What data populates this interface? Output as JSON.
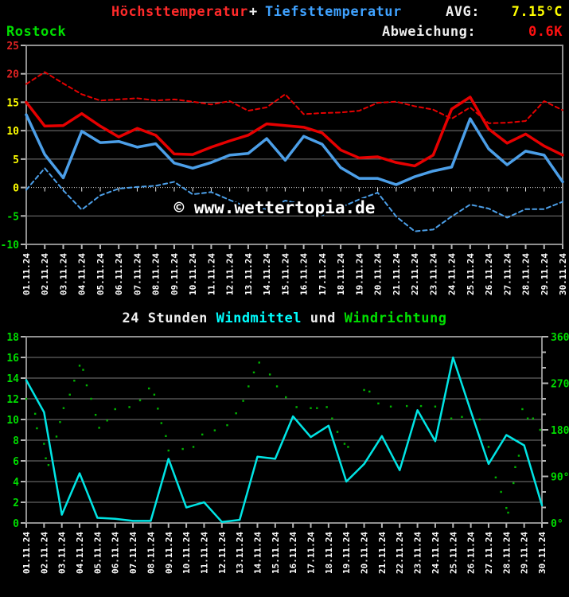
{
  "header": {
    "title_max": "Höchsttemperatur",
    "plus": "+",
    "title_min": "Tiefsttemperatur",
    "avg_label": "AVG:",
    "avg_value": "7.15°C",
    "station": "Rostock",
    "deviation_label": "Abweichung:",
    "deviation_value": "0.6K"
  },
  "watermark": "© www.wettertopia.de",
  "wind_title": {
    "part1": "24 Stunden ",
    "part2": "Windmittel",
    "part3": " und ",
    "part4": "Windrichtung"
  },
  "colors": {
    "background": "#000000",
    "max_line": "#e60000",
    "min_line": "#4c9fe8",
    "avg_value": "#ffff00",
    "deviation_value": "#ff1111",
    "station": "#00e000",
    "wind_line": "#00e5e5",
    "wind_dir_dots": "#00b400",
    "grid": "#7a7a7a",
    "frame": "#909090",
    "tick_labels_white": "#ffffff",
    "tick_labels_green": "#00dd00"
  },
  "chart_data": [
    {
      "type": "line",
      "title": "Höchsttemperatur + Tiefsttemperatur",
      "categories": [
        "01.11.24",
        "02.11.24",
        "03.11.24",
        "04.11.24",
        "05.11.24",
        "06.11.24",
        "07.11.24",
        "08.11.24",
        "09.11.24",
        "10.11.24",
        "11.11.24",
        "12.11.24",
        "13.11.24",
        "14.11.24",
        "15.11.24",
        "16.11.24",
        "17.11.24",
        "18.11.24",
        "19.11.24",
        "20.11.24",
        "21.11.24",
        "22.11.24",
        "23.11.24",
        "24.11.24",
        "25.11.24",
        "26.11.24",
        "27.11.24",
        "28.11.24",
        "29.11.24",
        "30.11.24"
      ],
      "ylabel": "°C",
      "ylim": [
        -10,
        25
      ],
      "ytick_step": 5,
      "yticks": [
        {
          "v": 25,
          "color": "#dd2222"
        },
        {
          "v": 20,
          "color": "#dd2222"
        },
        {
          "v": 15,
          "color": "#ffff00"
        },
        {
          "v": 10,
          "color": "#ffff00"
        },
        {
          "v": 5,
          "color": "#ffff00"
        },
        {
          "v": 0,
          "color": "#ffff00"
        },
        {
          "v": -5,
          "color": "#00dd00"
        },
        {
          "v": -10,
          "color": "#00dd00"
        }
      ],
      "legend_position": "top-outside",
      "grid": true,
      "series": [
        {
          "name": "Höchsttemperatur",
          "style": "solid",
          "color": "#e60000",
          "width": 3.5,
          "values": [
            15.0,
            10.8,
            10.9,
            13.0,
            10.8,
            8.9,
            10.4,
            9.2,
            5.9,
            5.8,
            7.1,
            8.2,
            9.2,
            11.2,
            10.9,
            10.6,
            9.6,
            6.6,
            5.2,
            5.4,
            4.4,
            3.8,
            5.7,
            13.8,
            15.9,
            10.3,
            7.8,
            9.4,
            7.3,
            5.7
          ]
        },
        {
          "name": "Tiefsttemperatur",
          "style": "solid",
          "color": "#4c9fe8",
          "width": 3.5,
          "values": [
            12.8,
            5.8,
            1.7,
            9.9,
            7.9,
            8.1,
            7.1,
            7.7,
            4.3,
            3.4,
            4.4,
            5.7,
            6.0,
            8.6,
            4.8,
            9.0,
            7.6,
            3.5,
            1.6,
            1.6,
            0.5,
            1.9,
            2.9,
            3.6,
            12.1,
            6.8,
            4.0,
            6.4,
            5.7,
            1.0
          ]
        },
        {
          "name": "max_dashed_reference",
          "style": "dashed",
          "color": "#e60000",
          "width": 2,
          "values": [
            18.2,
            20.3,
            18.3,
            16.4,
            15.3,
            15.5,
            15.7,
            15.3,
            15.5,
            15.1,
            14.6,
            15.2,
            13.5,
            14.1,
            16.4,
            12.9,
            13.1,
            13.2,
            13.5,
            14.9,
            15.1,
            14.3,
            13.7,
            12.1,
            14.1,
            11.3,
            11.4,
            11.7,
            15.2,
            13.6
          ]
        },
        {
          "name": "min_dashed_reference",
          "style": "dashed",
          "color": "#4c9fe8",
          "width": 2,
          "values": [
            -0.4,
            3.4,
            -0.5,
            -3.9,
            -1.4,
            -0.2,
            0.1,
            0.3,
            1.0,
            -1.2,
            -0.8,
            -2.2,
            -3.5,
            -3.8,
            -2.3,
            -3.0,
            -4.9,
            -3.5,
            -2.1,
            -0.9,
            -5.1,
            -7.7,
            -7.4,
            -5.1,
            -3.0,
            -3.7,
            -5.3,
            -3.8,
            -3.8,
            -2.5
          ]
        }
      ]
    },
    {
      "type": "line+scatter",
      "title": "24 Stunden Windmittel und Windrichtung",
      "categories": [
        "01.11.24",
        "02.11.24",
        "03.11.24",
        "04.11.24",
        "05.11.24",
        "06.11.24",
        "07.11.24",
        "08.11.24",
        "09.11.24",
        "10.11.24",
        "11.11.24",
        "12.11.24",
        "13.11.24",
        "14.11.24",
        "15.11.24",
        "16.11.24",
        "17.11.24",
        "18.11.24",
        "19.11.24",
        "20.11.24",
        "21.11.24",
        "22.11.24",
        "23.11.24",
        "24.11.24",
        "25.11.24",
        "26.11.24",
        "27.11.24",
        "28.11.24",
        "29.11.24",
        "30.11.24"
      ],
      "ylim_left": [
        0,
        18
      ],
      "ytick_step_left": 2,
      "ylim_right": [
        0,
        360
      ],
      "yticks_right": [
        {
          "deg": 0,
          "label": "0°"
        },
        {
          "deg": 90,
          "label": "90°"
        },
        {
          "deg": 180,
          "label": "180°"
        },
        {
          "deg": 270,
          "label": "270°"
        },
        {
          "deg": 360,
          "label": "360°"
        }
      ],
      "grid": true,
      "series": [
        {
          "name": "Windmittel",
          "style": "solid",
          "color": "#00e5e5",
          "width": 2.5,
          "axis": "left",
          "values": [
            13.8,
            10.7,
            0.8,
            4.8,
            0.5,
            0.4,
            0.2,
            0.2,
            6.2,
            1.5,
            2.0,
            0.1,
            0.3,
            6.4,
            6.2,
            10.3,
            8.3,
            9.4,
            4.0,
            5.7,
            8.4,
            5.1,
            10.9,
            7.9,
            16.0,
            10.8,
            5.7,
            8.5,
            7.5,
            1.7
          ]
        }
      ],
      "scatter": {
        "name": "Windrichtung",
        "color": "#00b400",
        "axis": "right",
        "points": [
          [
            1.0,
            240
          ],
          [
            1.5,
            211
          ],
          [
            1.6,
            183
          ],
          [
            2.0,
            153
          ],
          [
            2.1,
            125
          ],
          [
            2.25,
            112
          ],
          [
            2.7,
            167
          ],
          [
            2.9,
            195
          ],
          [
            3.1,
            222
          ],
          [
            3.45,
            248
          ],
          [
            3.7,
            275
          ],
          [
            4.0,
            304
          ],
          [
            4.2,
            296
          ],
          [
            4.4,
            266
          ],
          [
            4.65,
            240
          ],
          [
            4.9,
            209
          ],
          [
            5.1,
            184
          ],
          [
            5.55,
            198
          ],
          [
            6.0,
            220
          ],
          [
            6.8,
            224
          ],
          [
            7.4,
            237
          ],
          [
            7.9,
            260
          ],
          [
            8.2,
            248
          ],
          [
            8.4,
            221
          ],
          [
            8.6,
            193
          ],
          [
            8.85,
            168
          ],
          [
            9.0,
            140
          ],
          [
            9.8,
            143
          ],
          [
            10.4,
            147
          ],
          [
            10.9,
            171
          ],
          [
            11.6,
            179
          ],
          [
            12.3,
            189
          ],
          [
            12.8,
            212
          ],
          [
            13.2,
            236
          ],
          [
            13.5,
            264
          ],
          [
            13.8,
            291
          ],
          [
            14.1,
            310
          ],
          [
            14.7,
            287
          ],
          [
            15.1,
            264
          ],
          [
            15.6,
            243
          ],
          [
            16.2,
            224
          ],
          [
            17.0,
            222
          ],
          [
            17.35,
            222
          ],
          [
            17.9,
            224
          ],
          [
            18.2,
            202
          ],
          [
            18.5,
            176
          ],
          [
            18.9,
            153
          ],
          [
            19.1,
            147
          ],
          [
            20.0,
            257
          ],
          [
            20.3,
            254
          ],
          [
            20.8,
            231
          ],
          [
            21.5,
            225
          ],
          [
            22.4,
            226
          ],
          [
            23.2,
            226
          ],
          [
            24.0,
            225
          ],
          [
            24.9,
            202
          ],
          [
            25.5,
            205
          ],
          [
            26.5,
            200
          ],
          [
            27.0,
            147
          ],
          [
            27.4,
            88
          ],
          [
            27.7,
            60
          ],
          [
            28.0,
            29
          ],
          [
            28.1,
            20
          ],
          [
            28.4,
            77
          ],
          [
            28.5,
            108
          ],
          [
            28.7,
            130
          ],
          [
            28.9,
            220
          ],
          [
            29.2,
            202
          ],
          [
            29.5,
            202
          ],
          [
            29.9,
            180
          ]
        ]
      }
    }
  ]
}
